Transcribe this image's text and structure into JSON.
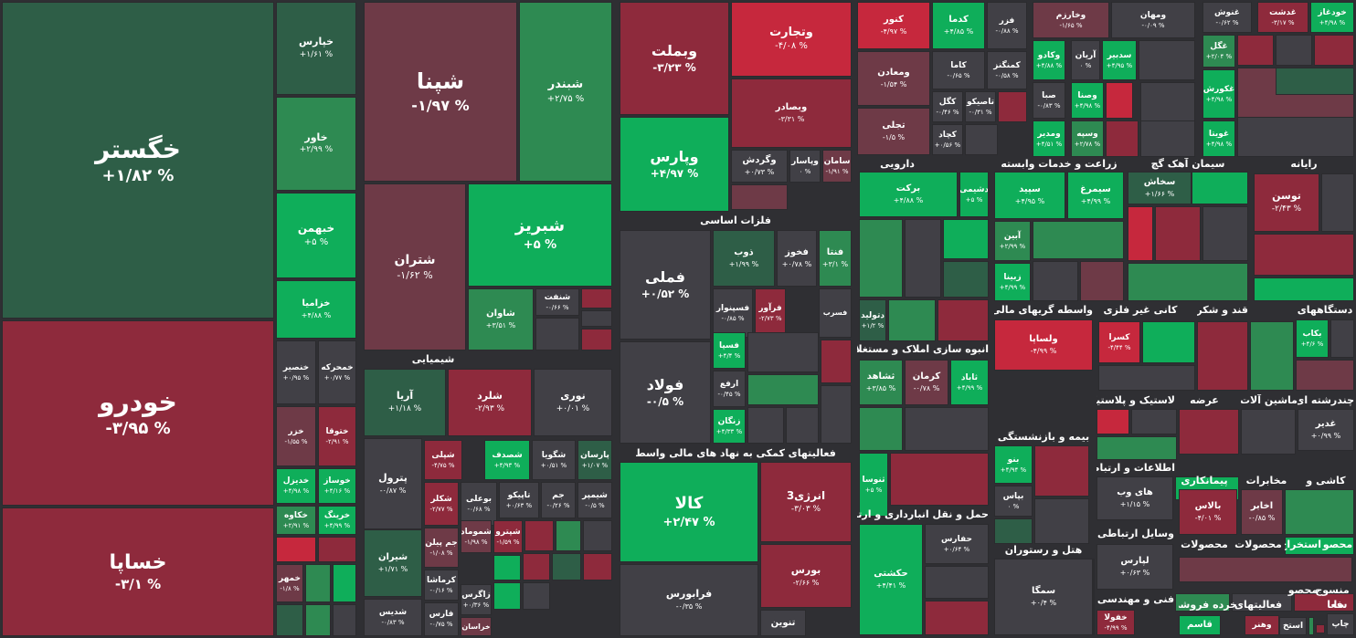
{
  "colors": {
    "dg": "#2e5e47",
    "mg": "#2e8a52",
    "bg": "#0fae5a",
    "dr": "#6e3a47",
    "mr": "#8e2a3c",
    "br": "#c6283d",
    "nu": "#414046"
  },
  "sectors": [
    {
      "label": "شیمیایی"
    },
    {
      "label": "فلزات اساسی"
    },
    {
      "label": "فعالیتهای کمکی به نهاد های مالی واسط"
    },
    {
      "label": "دارویی"
    },
    {
      "label": "انبوه سازی املاک و مستغلات"
    },
    {
      "label": "حمل و نقل انبارداری و ارتباطات"
    },
    {
      "label": "زراعت و خدمات وابسته"
    },
    {
      "label": "سیمان آهک گچ"
    },
    {
      "label": "رایانه"
    },
    {
      "label": "واسطه گریهای مالی و"
    },
    {
      "label": "کانی غیر فلزی"
    },
    {
      "label": "قند و شکر"
    },
    {
      "label": "دستگاههای"
    },
    {
      "label": "بیمه و بازنشستگی"
    },
    {
      "label": "لاستیک و پلاستیک"
    },
    {
      "label": "عرضه"
    },
    {
      "label": "ماشین آلات و"
    },
    {
      "label": "چندرشته ای"
    },
    {
      "label": "اطلاعات و ارتباطات"
    },
    {
      "label": "پیمانکاری"
    },
    {
      "label": "مخابرات"
    },
    {
      "label": "کاشی و"
    },
    {
      "label": "وسایل ارتباطی"
    },
    {
      "label": "محصولات"
    },
    {
      "label": "محصولات"
    },
    {
      "label": "استخراج"
    },
    {
      "label": "محصو"
    },
    {
      "label": "هتل و رستوران"
    },
    {
      "label": "فنی و مهندسی"
    },
    {
      "label": "خرده فروشی"
    },
    {
      "label": "فعالیتهای"
    },
    {
      "label": "محصو"
    },
    {
      "label": "منسوج"
    },
    {
      "label": "فعا"
    },
    {
      "label": "سا"
    }
  ],
  "tiles": [
    {
      "name": "خگستر",
      "change": "+۱/۸۲ %",
      "color": "dg"
    },
    {
      "name": "خودرو",
      "change": "-۳/۹۵ %",
      "color": "mr"
    },
    {
      "name": "خساپا",
      "change": "-۳/۱ %",
      "color": "mr"
    },
    {
      "name": "خپارس",
      "change": "+۱/۶۱ %",
      "color": "dg"
    },
    {
      "name": "خاور",
      "change": "+۲/۹۹ %",
      "color": "mg"
    },
    {
      "name": "خبهمن",
      "change": "+۵ %",
      "color": "bg"
    },
    {
      "name": "خزامیا",
      "change": "+۴/۸۸ %",
      "color": "bg"
    },
    {
      "name": "خنصیر",
      "change": "+۰/۹۵ %",
      "color": "nu"
    },
    {
      "name": "خمحرکه",
      "change": "+۰/۷۷ %",
      "color": "nu"
    },
    {
      "name": "خزر",
      "change": "-۱/۵۵ %",
      "color": "dr"
    },
    {
      "name": "ختوقا",
      "change": "-۲/۹۱ %",
      "color": "mr"
    },
    {
      "name": "خدیزل",
      "change": "+۴/۹۸ %",
      "color": "bg"
    },
    {
      "name": "خوساز",
      "change": "+۴/۱۶ %",
      "color": "bg"
    },
    {
      "name": "خکاوه",
      "change": "+۲/۹۱ %",
      "color": "mg"
    },
    {
      "name": "خرینگ",
      "change": "+۴/۹۹ %",
      "color": "bg"
    },
    {
      "name": "",
      "change": "",
      "color": "br"
    },
    {
      "name": "",
      "change": "",
      "color": "mr"
    },
    {
      "name": "خمهر",
      "change": "-۱/۸ %",
      "color": "dr"
    },
    {
      "name": "",
      "change": "",
      "color": "mg"
    },
    {
      "name": "",
      "change": "",
      "color": "bg"
    },
    {
      "name": "",
      "change": "",
      "color": "dg"
    },
    {
      "name": "",
      "change": "",
      "color": "mg"
    },
    {
      "name": "",
      "change": "",
      "color": "nu"
    },
    {
      "name": "شپنا",
      "change": "-۱/۹۷ %",
      "color": "dr"
    },
    {
      "name": "شبندر",
      "change": "+۲/۷۵ %",
      "color": "mg"
    },
    {
      "name": "شتران",
      "change": "-۱/۶۲ %",
      "color": "dr"
    },
    {
      "name": "شبریز",
      "change": "+۵ %",
      "color": "bg"
    },
    {
      "name": "شاوان",
      "change": "+۳/۵۱ %",
      "color": "mg"
    },
    {
      "name": "شنفت",
      "change": "-۰/۶۶ %",
      "color": "nu"
    },
    {
      "name": "",
      "change": "",
      "color": "mr"
    },
    {
      "name": "",
      "change": "",
      "color": "nu"
    },
    {
      "name": "",
      "change": "",
      "color": "nu"
    },
    {
      "name": "",
      "change": "",
      "color": "mr"
    },
    {
      "name": "آریا",
      "change": "+۱/۱۸ %",
      "color": "dg"
    },
    {
      "name": "شلرد",
      "change": "-۲/۹۳ %",
      "color": "mr"
    },
    {
      "name": "نوری",
      "change": "+۰/۰۱ %",
      "color": "nu"
    },
    {
      "name": "پترول",
      "change": "-۰/۸۷ %",
      "color": "nu"
    },
    {
      "name": "شپلی",
      "change": "-۴/۷۵ %",
      "color": "mr"
    },
    {
      "name": "شصدف",
      "change": "+۴/۹۳ %",
      "color": "bg"
    },
    {
      "name": "شگویا",
      "change": "+۰/۵۱ %",
      "color": "nu"
    },
    {
      "name": "پارسان",
      "change": "+۱/۰۷ %",
      "color": "dg"
    },
    {
      "name": "شکلر",
      "change": "-۲/۷۷ %",
      "color": "mr"
    },
    {
      "name": "بوعلی",
      "change": "-۰/۶۸ %",
      "color": "nu"
    },
    {
      "name": "تاپیکو",
      "change": "+۰/۶۳ %",
      "color": "nu"
    },
    {
      "name": "جم",
      "change": "-۰/۲۶ %",
      "color": "nu"
    },
    {
      "name": "شیمپر",
      "change": "-۰/۵ %",
      "color": "nu"
    },
    {
      "name": "شیران",
      "change": "+۱/۷۱ %",
      "color": "dg"
    },
    {
      "name": "جم پیلن",
      "change": "-۱/۰۸ %",
      "color": "dr"
    },
    {
      "name": "شموماد",
      "change": "-۱/۹۸ %",
      "color": "dr"
    },
    {
      "name": "شپترو",
      "change": "-۱/۵۹ %",
      "color": "mr"
    },
    {
      "name": "کرماشا",
      "change": "-۰/۱۶ %",
      "color": "nu"
    },
    {
      "name": "زاگرس",
      "change": "+۰/۳۶ %",
      "color": "nu"
    },
    {
      "name": "شدیس",
      "change": "-۰/۸۳ %",
      "color": "nu"
    },
    {
      "name": "فارس",
      "change": "-۰/۷۵ %",
      "color": "nu"
    },
    {
      "name": "خراسان",
      "change": "",
      "color": "dr"
    },
    {
      "name": "",
      "change": "",
      "color": "mr"
    },
    {
      "name": "",
      "change": "",
      "color": "mg"
    },
    {
      "name": "",
      "change": "",
      "color": "nu"
    },
    {
      "name": "",
      "change": "",
      "color": "bg"
    },
    {
      "name": "",
      "change": "",
      "color": "mr"
    },
    {
      "name": "",
      "change": "",
      "color": "dg"
    },
    {
      "name": "",
      "change": "",
      "color": "mr"
    },
    {
      "name": "",
      "change": "",
      "color": "bg"
    },
    {
      "name": "",
      "change": "",
      "color": "nu"
    },
    {
      "name": "وبملت",
      "change": "-۳/۲۳ %",
      "color": "mr"
    },
    {
      "name": "وتجارت",
      "change": "-۴/۰۸ %",
      "color": "br"
    },
    {
      "name": "وبصادر",
      "change": "-۳/۳۱ %",
      "color": "mr"
    },
    {
      "name": "وپارس",
      "change": "+۴/۹۷ %",
      "color": "bg"
    },
    {
      "name": "وگردش",
      "change": "+۰/۷۳ %",
      "color": "nu"
    },
    {
      "name": "وپاسار",
      "change": "۰ %",
      "color": "nu"
    },
    {
      "name": "سامان",
      "change": "-۱/۹۱ %",
      "color": "dr"
    },
    {
      "name": "",
      "change": "",
      "color": "dr"
    },
    {
      "name": "فملی",
      "change": "+۰/۵۲ %",
      "color": "nu"
    },
    {
      "name": "ذوب",
      "change": "+۱/۹۹ %",
      "color": "dg"
    },
    {
      "name": "فخوز",
      "change": "+۰/۷۸ %",
      "color": "nu"
    },
    {
      "name": "فنتا",
      "change": "+۳/۱ %",
      "color": "mg"
    },
    {
      "name": "فسرب",
      "change": "",
      "color": "nu"
    },
    {
      "name": "فسپنوار",
      "change": "-۰/۸۵ %",
      "color": "nu"
    },
    {
      "name": "فرآور",
      "change": "-۲/۷۳ %",
      "color": "mr"
    },
    {
      "name": "فولاد",
      "change": "-۰/۵ %",
      "color": "nu"
    },
    {
      "name": "فسپا",
      "change": "+۴/۴ %",
      "color": "bg"
    },
    {
      "name": "ارفع",
      "change": "-۰/۴۵ %",
      "color": "nu"
    },
    {
      "name": "زنگان",
      "change": "+۴/۳۳ %",
      "color": "bg"
    },
    {
      "name": "",
      "change": "",
      "color": "nu"
    },
    {
      "name": "",
      "change": "",
      "color": "mr"
    },
    {
      "name": "",
      "change": "",
      "color": "mg"
    },
    {
      "name": "",
      "change": "",
      "color": "nu"
    },
    {
      "name": "",
      "change": "",
      "color": "nu"
    },
    {
      "name": "",
      "change": "",
      "color": "nu"
    },
    {
      "name": "کالا",
      "change": "+۲/۴۷ %",
      "color": "bg"
    },
    {
      "name": "انرژی3",
      "change": "-۳/۰۳ %",
      "color": "mr"
    },
    {
      "name": "بورس",
      "change": "-۲/۶۶ %",
      "color": "mr"
    },
    {
      "name": "فرابورس",
      "change": "-۰/۳۵ %",
      "color": "nu"
    },
    {
      "name": "تنوین",
      "change": "",
      "color": "nu"
    },
    {
      "name": "کنور",
      "change": "-۴/۹۷ %",
      "color": "br"
    },
    {
      "name": "کدما",
      "change": "+۴/۸۵ %",
      "color": "bg"
    },
    {
      "name": "فزر",
      "change": "-۰/۸۸ %",
      "color": "nu"
    },
    {
      "name": "ومعادن",
      "change": "-۱/۵۴ %",
      "color": "dr"
    },
    {
      "name": "کاما",
      "change": "-۰/۶۵ %",
      "color": "nu"
    },
    {
      "name": "کمنگنز",
      "change": "-۰/۵۸ %",
      "color": "nu"
    },
    {
      "name": "تجلی",
      "change": "-۱/۵ %",
      "color": "dr"
    },
    {
      "name": "کگل",
      "change": "-۰/۴۶ %",
      "color": "nu"
    },
    {
      "name": "تاصیکو",
      "change": "-۰/۳۱ %",
      "color": "nu"
    },
    {
      "name": "کچاد",
      "change": "+۰/۵۶ %",
      "color": "nu"
    },
    {
      "name": "",
      "change": "",
      "color": "mr"
    },
    {
      "name": "",
      "change": "",
      "color": "nu"
    },
    {
      "name": "وخارزم",
      "change": "-۱/۶۵ %",
      "color": "dr"
    },
    {
      "name": "ومهان",
      "change": "-۰/۰۹ %",
      "color": "nu"
    },
    {
      "name": "",
      "change": "",
      "color": "nu"
    },
    {
      "name": "وکادو",
      "change": "+۴/۸۸ %",
      "color": "bg"
    },
    {
      "name": "آریان",
      "change": "۰ %",
      "color": "nu"
    },
    {
      "name": "سدبیر",
      "change": "+۴/۹۵ %",
      "color": "bg"
    },
    {
      "name": "",
      "change": "",
      "color": "nu"
    },
    {
      "name": "صبا",
      "change": "-۰/۸۳ %",
      "color": "nu"
    },
    {
      "name": "وصنا",
      "change": "+۴/۹۸ %",
      "color": "bg"
    },
    {
      "name": "",
      "change": "",
      "color": "br"
    },
    {
      "name": "ومدیر",
      "change": "+۴/۵۱ %",
      "color": "bg"
    },
    {
      "name": "وسپه",
      "change": "+۲/۷۸ %",
      "color": "mg"
    },
    {
      "name": "",
      "change": "",
      "color": "mr"
    },
    {
      "name": "",
      "change": "",
      "color": "nu"
    },
    {
      "name": "",
      "change": "",
      "color": "nu"
    },
    {
      "name": "غنوش",
      "change": "-۰/۶۲ %",
      "color": "nu"
    },
    {
      "name": "غدشت",
      "change": "-۳/۱۷ %",
      "color": "mr"
    },
    {
      "name": "خودغاز",
      "change": "+۴/۹۸ %",
      "color": "bg"
    },
    {
      "name": "غگل",
      "change": "+۲/۰۴ %",
      "color": "mg"
    },
    {
      "name": "غکورش",
      "change": "+۴/۹۸ %",
      "color": "bg"
    },
    {
      "name": "غویتا",
      "change": "+۴/۹۸ %",
      "color": "bg"
    },
    {
      "name": "",
      "change": "",
      "color": "mr"
    },
    {
      "name": "",
      "change": "",
      "color": "nu"
    },
    {
      "name": "",
      "change": "",
      "color": "mr"
    },
    {
      "name": "",
      "change": "",
      "color": "dr"
    },
    {
      "name": "",
      "change": "",
      "color": "dg"
    },
    {
      "name": "",
      "change": "",
      "color": "nu"
    },
    {
      "name": "برکت",
      "change": "+۴/۸۸ %",
      "color": "bg"
    },
    {
      "name": "دشیمی",
      "change": "+۵ %",
      "color": "bg"
    },
    {
      "name": "دتولید",
      "change": "+۱/۲ %",
      "color": "dg"
    },
    {
      "name": "",
      "change": "",
      "color": "mg"
    },
    {
      "name": "",
      "change": "",
      "color": "nu"
    },
    {
      "name": "",
      "change": "",
      "color": "bg"
    },
    {
      "name": "",
      "change": "",
      "color": "dg"
    },
    {
      "name": "",
      "change": "",
      "color": "mg"
    },
    {
      "name": "",
      "change": "",
      "color": "mr"
    },
    {
      "name": "ثشاهد",
      "change": "+۳/۸۵ %",
      "color": "mg"
    },
    {
      "name": "کرمان",
      "change": "-۰/۷۸ %",
      "color": "dr"
    },
    {
      "name": "ثاباد",
      "change": "+۴/۹۹ %",
      "color": "bg"
    },
    {
      "name": "ثنوسا",
      "change": "+۵ %",
      "color": "bg"
    },
    {
      "name": "",
      "change": "",
      "color": "mg"
    },
    {
      "name": "",
      "change": "",
      "color": "nu"
    },
    {
      "name": "",
      "change": "",
      "color": "mr"
    },
    {
      "name": "حکشتی",
      "change": "+۴/۴۱ %",
      "color": "bg"
    },
    {
      "name": "حفارس",
      "change": "+۰/۶۴ %",
      "color": "nu"
    },
    {
      "name": "",
      "change": "",
      "color": "nu"
    },
    {
      "name": "",
      "change": "",
      "color": "mr"
    },
    {
      "name": "سپید",
      "change": "+۴/۹۵ %",
      "color": "bg"
    },
    {
      "name": "سیمرغ",
      "change": "+۴/۹۹ %",
      "color": "bg"
    },
    {
      "name": "آبین",
      "change": "+۲/۹۹ %",
      "color": "mg"
    },
    {
      "name": "زبینا",
      "change": "+۴/۹۹ %",
      "color": "bg"
    },
    {
      "name": "",
      "change": "",
      "color": "mg"
    },
    {
      "name": "",
      "change": "",
      "color": "nu"
    },
    {
      "name": "",
      "change": "",
      "color": "dr"
    },
    {
      "name": "سخاش",
      "change": "+۱/۶۶ %",
      "color": "dg"
    },
    {
      "name": "",
      "change": "",
      "color": "bg"
    },
    {
      "name": "",
      "change": "",
      "color": "br"
    },
    {
      "name": "",
      "change": "",
      "color": "mr"
    },
    {
      "name": "",
      "change": "",
      "color": "nu"
    },
    {
      "name": "",
      "change": "",
      "color": "mg"
    },
    {
      "name": "توسن",
      "change": "-۲/۴۳ %",
      "color": "mr"
    },
    {
      "name": "",
      "change": "",
      "color": "nu"
    },
    {
      "name": "",
      "change": "",
      "color": "mr"
    },
    {
      "name": "",
      "change": "",
      "color": "bg"
    },
    {
      "name": "ولساپا",
      "change": "-۴/۹۹ %",
      "color": "br"
    },
    {
      "name": "کسرا",
      "change": "-۴/۴۴ %",
      "color": "br"
    },
    {
      "name": "",
      "change": "",
      "color": "bg"
    },
    {
      "name": "",
      "change": "",
      "color": "nu"
    },
    {
      "name": "",
      "change": "",
      "color": "mr"
    },
    {
      "name": "بکاب",
      "change": "+۴/۶ %",
      "color": "bg"
    },
    {
      "name": "",
      "change": "",
      "color": "nu"
    },
    {
      "name": "",
      "change": "",
      "color": "dr"
    },
    {
      "name": "",
      "change": "",
      "color": "mg"
    },
    {
      "name": "بنو",
      "change": "+۴/۹۴ %",
      "color": "bg"
    },
    {
      "name": "بپاس",
      "change": "۰ %",
      "color": "nu"
    },
    {
      "name": "",
      "change": "",
      "color": "mr"
    },
    {
      "name": "",
      "change": "",
      "color": "nu"
    },
    {
      "name": "",
      "change": "",
      "color": "dg"
    },
    {
      "name": "",
      "change": "",
      "color": "br"
    },
    {
      "name": "",
      "change": "",
      "color": "nu"
    },
    {
      "name": "",
      "change": "",
      "color": "mg"
    },
    {
      "name": "",
      "change": "",
      "color": "mr"
    },
    {
      "name": "",
      "change": "",
      "color": "nu"
    },
    {
      "name": "غدیر",
      "change": "+۰/۹۹ %",
      "color": "nu"
    },
    {
      "name": "های وب",
      "change": "+۱/۱۵ %",
      "color": "nu"
    },
    {
      "name": "",
      "change": "",
      "color": "bg"
    },
    {
      "name": "بالاس",
      "change": "-۴/۰۱ %",
      "color": "mr"
    },
    {
      "name": "اخابر",
      "change": "-۰/۸۵ %",
      "color": "dr"
    },
    {
      "name": "",
      "change": "",
      "color": "mg"
    },
    {
      "name": "",
      "change": "",
      "color": "dr"
    },
    {
      "name": "",
      "change": "",
      "color": "bg"
    },
    {
      "name": "لپارس",
      "change": "+۰/۶۳ %",
      "color": "nu"
    },
    {
      "name": "",
      "change": "",
      "color": "br"
    },
    {
      "name": "",
      "change": "",
      "color": "nu"
    },
    {
      "name": "",
      "change": "",
      "color": "mg"
    },
    {
      "name": "",
      "change": "",
      "color": "nu"
    },
    {
      "name": "",
      "change": "",
      "color": "mr"
    },
    {
      "name": "",
      "change": "",
      "color": "dg"
    },
    {
      "name": "",
      "change": "",
      "color": "nu"
    },
    {
      "name": "سمگا",
      "change": "+۰/۴ %",
      "color": "nu"
    },
    {
      "name": "",
      "change": "",
      "color": "mr"
    },
    {
      "name": "خفولا",
      "change": "-۴/۹۹ %",
      "color": "mr"
    },
    {
      "name": "قاسم",
      "change": "",
      "color": "bg"
    },
    {
      "name": "وهنر",
      "change": "",
      "color": "mr"
    },
    {
      "name": "استخ",
      "change": "",
      "color": "nu"
    },
    {
      "name": "چاپ",
      "change": "",
      "color": "nu"
    },
    {
      "name": "",
      "change": "",
      "color": "mr"
    },
    {
      "name": "",
      "change": "",
      "color": "mg"
    }
  ]
}
